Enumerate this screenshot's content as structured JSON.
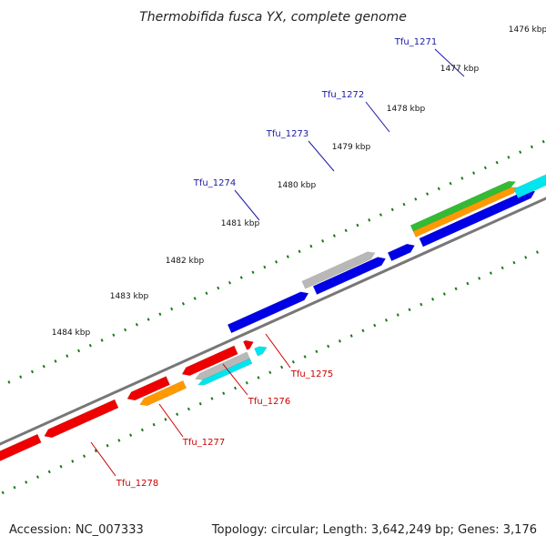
{
  "title": "Thermobifida fusca YX, complete genome",
  "footer": {
    "accession": "Accession: NC_007333",
    "summary": "Topology: circular; Length: 3,642,249 bp; Genes: 3,176"
  },
  "colors": {
    "forward_label": "#1a1aa8",
    "reverse_label": "#cc0000",
    "forward_gene": "#0000e6",
    "reverse_gene": "#ee0000",
    "cyan_gene": "#00e5ee",
    "orange_gene": "#ff9900",
    "green_gene": "#33bb33",
    "grey_gene": "#b8b8b8",
    "backbone": "#777777",
    "ticks": "#1a7a1a"
  },
  "ticks": [
    {
      "label": "1476 kbp"
    },
    {
      "label": "1477 kbp"
    },
    {
      "label": "1478 kbp"
    },
    {
      "label": "1479 kbp"
    },
    {
      "label": "1480 kbp"
    },
    {
      "label": "1481 kbp"
    },
    {
      "label": "1482 kbp"
    },
    {
      "label": "1483 kbp"
    },
    {
      "label": "1484 kbp"
    }
  ],
  "genes": {
    "forward": [
      {
        "label": "Tfu_1271"
      },
      {
        "label": "Tfu_1272"
      },
      {
        "label": "Tfu_1273"
      },
      {
        "label": "Tfu_1274"
      }
    ],
    "reverse": [
      {
        "label": "Tfu_1275"
      },
      {
        "label": "Tfu_1276"
      },
      {
        "label": "Tfu_1277"
      },
      {
        "label": "Tfu_1278"
      }
    ]
  }
}
